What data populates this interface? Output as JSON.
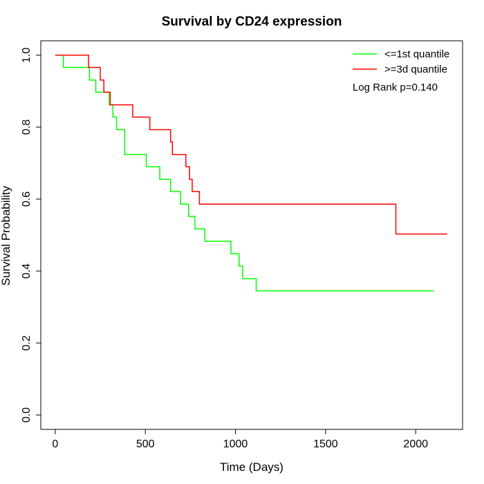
{
  "chart_data": {
    "type": "line",
    "title": "Survival by CD24 expression",
    "xlabel": "Time (Days)",
    "ylabel": "Survival Probability",
    "xlim": [
      -80,
      2260
    ],
    "ylim": [
      -0.04,
      1.04
    ],
    "xticks": [
      0,
      500,
      1000,
      1500,
      2000
    ],
    "yticks": [
      0.0,
      0.2,
      0.4,
      0.6,
      0.8,
      1.0
    ],
    "xtick_labels": [
      "0",
      "500",
      "1000",
      "1500",
      "2000"
    ],
    "ytick_labels": [
      "0.0",
      "0.2",
      "0.4",
      "0.6",
      "0.8",
      "1.0"
    ],
    "legend_position": "top-right",
    "annotation": "Log Rank p=0.140",
    "series": [
      {
        "name": "<=1st quantile",
        "color": "#00ff00",
        "step": true,
        "x": [
          0,
          45,
          190,
          225,
          300,
          320,
          340,
          385,
          505,
          580,
          640,
          695,
          740,
          775,
          830,
          975,
          1020,
          1040,
          1115,
          2100
        ],
        "y": [
          1.0,
          0.966,
          0.931,
          0.897,
          0.862,
          0.828,
          0.793,
          0.724,
          0.69,
          0.655,
          0.621,
          0.586,
          0.552,
          0.517,
          0.483,
          0.448,
          0.414,
          0.379,
          0.345,
          0.345
        ]
      },
      {
        "name": ">=3d quantile",
        "color": "#ff0000",
        "step": true,
        "x": [
          0,
          185,
          250,
          270,
          305,
          430,
          525,
          640,
          650,
          725,
          745,
          760,
          800,
          1890,
          2175
        ],
        "y": [
          1.0,
          0.966,
          0.931,
          0.897,
          0.862,
          0.828,
          0.793,
          0.759,
          0.724,
          0.69,
          0.655,
          0.621,
          0.586,
          0.503,
          0.503
        ]
      }
    ]
  }
}
